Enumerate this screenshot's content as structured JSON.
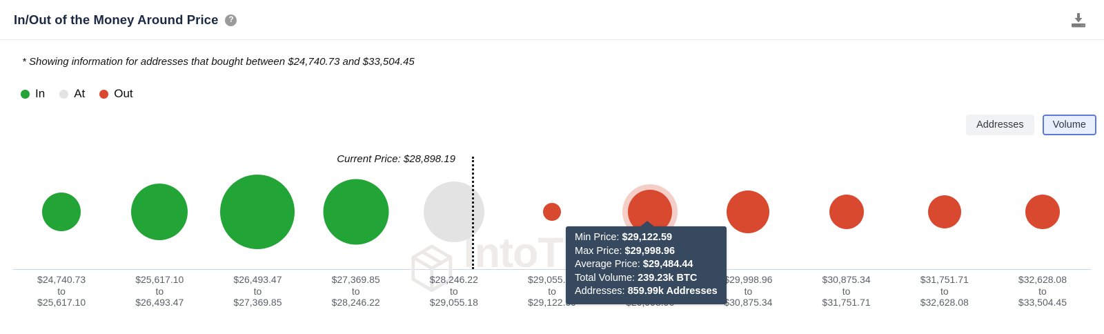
{
  "header": {
    "title": "In/Out of the Money Around Price",
    "help_icon": "?",
    "download_icon": "download"
  },
  "note": "* Showing information for addresses that bought between $24,740.73 and $33,504.45",
  "legend": [
    {
      "label": "In",
      "color": "#22a437"
    },
    {
      "label": "At",
      "color": "#e3e3e3"
    },
    {
      "label": "Out",
      "color": "#d8492f"
    }
  ],
  "view_toggle": {
    "options": [
      {
        "label": "Addresses",
        "selected": false
      },
      {
        "label": "Volume",
        "selected": true
      }
    ]
  },
  "colors": {
    "in": "#22a437",
    "at": "#e3e3e3",
    "out": "#d8492f",
    "halo": "rgba(216,73,47,0.27)",
    "tooltip_bg": "#36495e",
    "axis_line": "#cdd7ea",
    "accent_blue": "#5b79d9"
  },
  "watermark": "IntoTheBlock",
  "chart_data": {
    "type": "bubble",
    "title": "In/Out of the Money Around Price",
    "current_price": 28898.19,
    "current_price_label": "Current Price: $28,898.19",
    "range_separator": "to",
    "x_range_bounds": [
      24740.73,
      33504.45
    ],
    "buckets": [
      {
        "from": "$24,740.73",
        "to": "$25,617.10",
        "status": "in",
        "diameter": 56
      },
      {
        "from": "$25,617.10",
        "to": "$26,493.47",
        "status": "in",
        "diameter": 82
      },
      {
        "from": "$26,493.47",
        "to": "$27,369.85",
        "status": "in",
        "diameter": 108
      },
      {
        "from": "$27,369.85",
        "to": "$28,246.22",
        "status": "in",
        "diameter": 95
      },
      {
        "from": "$28,246.22",
        "to": "$29,055.18",
        "status": "at",
        "diameter": 88
      },
      {
        "from": "$29,055.18",
        "to": "$29,122.59",
        "status": "out",
        "diameter": 26
      },
      {
        "from": "$29,122.59",
        "to": "$29,998.96",
        "status": "out",
        "diameter": 64,
        "hovered": true
      },
      {
        "from": "$29,998.96",
        "to": "$30,875.34",
        "status": "out",
        "diameter": 62
      },
      {
        "from": "$30,875.34",
        "to": "$31,751.71",
        "status": "out",
        "diameter": 50
      },
      {
        "from": "$31,751.71",
        "to": "$32,628.08",
        "status": "out",
        "diameter": 48
      },
      {
        "from": "$32,628.08",
        "to": "$33,504.45",
        "status": "out",
        "diameter": 50
      }
    ]
  },
  "tooltip": {
    "rows": [
      {
        "label": "Min Price: ",
        "value": "$29,122.59"
      },
      {
        "label": "Max Price: ",
        "value": "$29,998.96"
      },
      {
        "label": "Average Price: ",
        "value": "$29,484.44"
      },
      {
        "label": "Total Volume: ",
        "value": "239.23k BTC"
      },
      {
        "label": "Addresses: ",
        "value": "859.99k Addresses"
      }
    ]
  }
}
